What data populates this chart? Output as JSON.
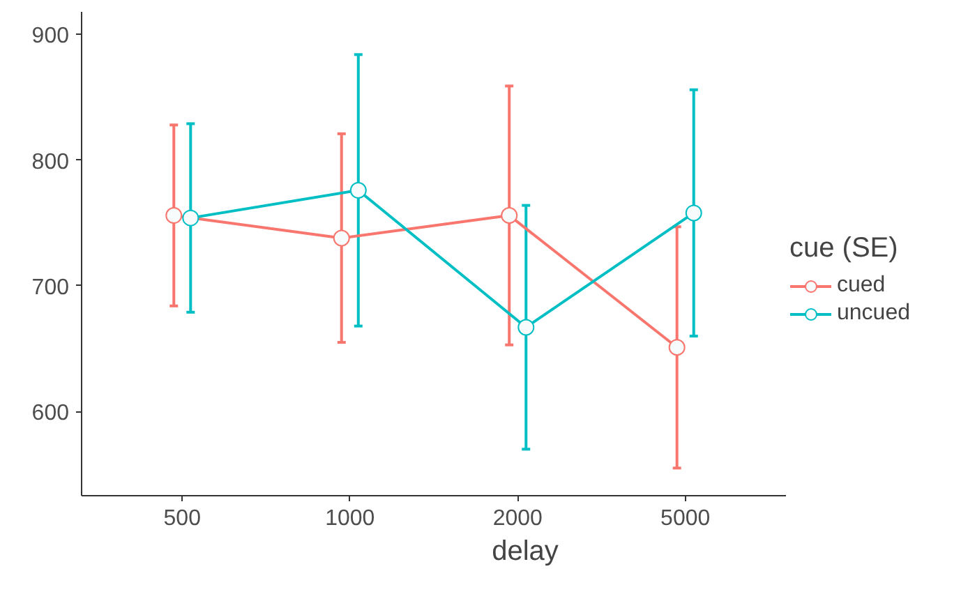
{
  "chart_data": {
    "type": "line",
    "xlabel": "delay",
    "legend_title": "cue (SE)",
    "categories": [
      "500",
      "1000",
      "2000",
      "5000"
    ],
    "series": [
      {
        "name": "cued",
        "color": "#f8766d",
        "values": [
          756,
          738,
          756,
          651
        ],
        "errors": [
          72,
          83,
          103,
          96
        ]
      },
      {
        "name": "uncued",
        "color": "#00bfc4",
        "values": [
          754,
          776,
          667,
          758
        ],
        "errors": [
          75,
          108,
          97,
          98
        ]
      }
    ],
    "ylim": [
      533,
      918
    ],
    "yticks": [
      600,
      700,
      800,
      900
    ],
    "grid": false,
    "legend": "right",
    "marker": "circle",
    "line_style": "solid"
  }
}
